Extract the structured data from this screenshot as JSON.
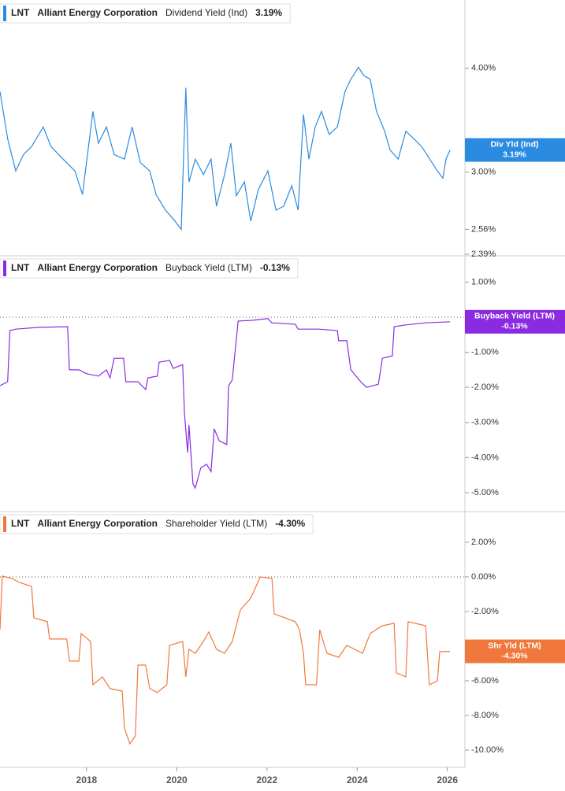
{
  "chart_data": [
    {
      "type": "line",
      "ticker": "LNT",
      "company": "Alliant Energy Corporation",
      "log_scale": true,
      "xlim": [
        2016.08,
        2026.39
      ],
      "ylim": [
        2.39,
        4.78
      ],
      "yticks": [
        {
          "value": 4,
          "label": "4.00%"
        },
        {
          "value": 3,
          "label": "3.00%"
        },
        {
          "value": 2.56,
          "label": "2.56%"
        },
        {
          "value": 2.39,
          "label": "2.39%"
        }
      ],
      "x": [
        2016.08,
        2016.25,
        2016.43,
        2016.6,
        2016.78,
        2017.04,
        2017.21,
        2017.48,
        2017.74,
        2017.91,
        2018.14,
        2018.26,
        2018.44,
        2018.61,
        2018.84,
        2019.01,
        2019.19,
        2019.4,
        2019.54,
        2019.75,
        2019.96,
        2020.1,
        2020.2,
        2020.27,
        2020.41,
        2020.59,
        2020.76,
        2020.88,
        2021.06,
        2021.2,
        2021.32,
        2021.5,
        2021.64,
        2021.81,
        2022.02,
        2022.2,
        2022.37,
        2022.55,
        2022.69,
        2022.81,
        2022.93,
        2023.07,
        2023.21,
        2023.38,
        2023.56,
        2023.73,
        2023.86,
        2024.03,
        2024.15,
        2024.29,
        2024.43,
        2024.61,
        2024.73,
        2024.91,
        2025.08,
        2025.26,
        2025.43,
        2025.61,
        2025.78,
        2025.9,
        2025.97,
        2026.06
      ],
      "series": [
        {
          "name": "Dividend Yield (Ind)",
          "color": "#2b8be0",
          "values": [
            3.75,
            3.29,
            3.01,
            3.15,
            3.22,
            3.4,
            3.22,
            3.11,
            3.01,
            2.82,
            3.55,
            3.25,
            3.4,
            3.15,
            3.11,
            3.4,
            3.08,
            3.01,
            2.82,
            2.7,
            2.62,
            2.56,
            3.79,
            2.92,
            3.11,
            2.98,
            3.11,
            2.73,
            2.98,
            3.25,
            2.81,
            2.92,
            2.62,
            2.86,
            3.01,
            2.7,
            2.73,
            2.89,
            2.7,
            3.52,
            3.11,
            3.4,
            3.55,
            3.33,
            3.4,
            3.75,
            3.88,
            4.01,
            3.92,
            3.88,
            3.55,
            3.36,
            3.19,
            3.11,
            3.36,
            3.29,
            3.22,
            3.11,
            3.01,
            2.95,
            3.11,
            3.19
          ]
        }
      ],
      "badge": {
        "label": "Div Yld (Ind)",
        "value": 3.19,
        "value_label": "3.19%"
      }
    },
    {
      "type": "line",
      "ticker": "LNT",
      "company": "Alliant Energy Corporation",
      "xlim": [
        2016.08,
        2026.39
      ],
      "ylim": [
        -5.54,
        1.75
      ],
      "reference_line": 0,
      "yticks": [
        {
          "value": 1,
          "label": "1.00%"
        },
        {
          "value": -1,
          "label": "-1.00%"
        },
        {
          "value": -2,
          "label": "-2.00%"
        },
        {
          "value": -3,
          "label": "-3.00%"
        },
        {
          "value": -4,
          "label": "-4.00%"
        },
        {
          "value": -5,
          "label": "-5.00%"
        }
      ],
      "x": [
        2016.08,
        2016.25,
        2016.3,
        2016.43,
        2016.95,
        2017.58,
        2017.62,
        2017.83,
        2018.0,
        2018.26,
        2018.44,
        2018.52,
        2018.61,
        2018.82,
        2018.87,
        2019.14,
        2019.31,
        2019.36,
        2019.57,
        2019.61,
        2019.84,
        2019.92,
        2020.13,
        2020.17,
        2020.24,
        2020.27,
        2020.36,
        2020.41,
        2020.53,
        2020.66,
        2020.76,
        2020.83,
        2020.94,
        2021.11,
        2021.15,
        2021.23,
        2021.36,
        2021.67,
        2022.02,
        2022.11,
        2022.63,
        2022.69,
        2023.16,
        2023.56,
        2023.59,
        2023.77,
        2023.86,
        2024.08,
        2024.21,
        2024.47,
        2024.56,
        2024.78,
        2024.82,
        2025.08,
        2025.52,
        2026.06
      ],
      "series": [
        {
          "name": "Buyback Yield (LTM)",
          "color": "#8a2be2",
          "values": [
            -1.95,
            -1.84,
            -0.38,
            -0.34,
            -0.29,
            -0.27,
            -1.5,
            -1.5,
            -1.61,
            -1.68,
            -1.5,
            -1.73,
            -1.17,
            -1.17,
            -1.84,
            -1.84,
            -2.06,
            -1.73,
            -1.68,
            -1.28,
            -1.23,
            -1.46,
            -1.35,
            -2.74,
            -3.86,
            -3.07,
            -4.75,
            -4.87,
            -4.3,
            -4.19,
            -4.4,
            -3.18,
            -3.52,
            -3.63,
            -1.95,
            -1.79,
            -0.11,
            -0.09,
            -0.04,
            -0.16,
            -0.2,
            -0.34,
            -0.34,
            -0.38,
            -0.67,
            -0.67,
            -1.5,
            -1.84,
            -2.0,
            -1.91,
            -1.17,
            -1.1,
            -0.27,
            -0.22,
            -0.16,
            -0.13
          ]
        }
      ],
      "badge": {
        "label": "Buyback Yield (LTM)",
        "value": -0.13,
        "value_label": "-0.13%"
      }
    },
    {
      "type": "line",
      "ticker": "LNT",
      "company": "Alliant Energy Corporation",
      "xlim": [
        2016.08,
        2026.39
      ],
      "ylim": [
        -11,
        3.77
      ],
      "reference_line": 0,
      "xticks": [
        2018,
        2020,
        2022,
        2024,
        2026
      ],
      "yticks": [
        {
          "value": 2,
          "label": "2.00%"
        },
        {
          "value": 0,
          "label": "0.00%"
        },
        {
          "value": -2,
          "label": "-2.00%"
        },
        {
          "value": -4,
          "label": "-4.00%"
        },
        {
          "value": -6,
          "label": "-6.00%"
        },
        {
          "value": -8,
          "label": "-8.00%"
        },
        {
          "value": -10,
          "label": "-10.00%"
        }
      ],
      "x": [
        2016.08,
        2016.13,
        2016.34,
        2016.51,
        2016.78,
        2016.83,
        2017.13,
        2017.18,
        2017.56,
        2017.62,
        2017.83,
        2017.88,
        2018.09,
        2018.14,
        2018.35,
        2018.52,
        2018.79,
        2018.84,
        2018.96,
        2019.08,
        2019.14,
        2019.31,
        2019.4,
        2019.57,
        2019.78,
        2019.84,
        2020.13,
        2020.2,
        2020.27,
        2020.41,
        2020.59,
        2020.71,
        2020.88,
        2021.06,
        2021.23,
        2021.41,
        2021.64,
        2021.85,
        2022.11,
        2022.16,
        2022.63,
        2022.72,
        2022.81,
        2022.86,
        2023.1,
        2023.17,
        2023.33,
        2023.59,
        2023.77,
        2024.12,
        2024.29,
        2024.56,
        2024.82,
        2024.87,
        2025.08,
        2025.13,
        2025.52,
        2025.6,
        2025.78,
        2025.83,
        2026.06
      ],
      "series": [
        {
          "name": "Shareholder Yield (LTM)",
          "color": "#f0783c",
          "values": [
            -3.05,
            0.05,
            -0.09,
            -0.32,
            -0.55,
            -2.36,
            -2.59,
            -3.59,
            -3.59,
            -4.86,
            -4.86,
            -3.27,
            -3.73,
            -6.23,
            -5.77,
            -6.45,
            -6.59,
            -8.73,
            -9.64,
            -9.18,
            -5.09,
            -5.09,
            -6.45,
            -6.68,
            -6.23,
            -3.95,
            -3.73,
            -5.77,
            -4.18,
            -4.41,
            -3.73,
            -3.18,
            -4.18,
            -4.41,
            -3.73,
            -1.91,
            -1.23,
            0,
            -0.09,
            -2.14,
            -2.59,
            -3.05,
            -4.41,
            -6.23,
            -6.23,
            -3.05,
            -4.41,
            -4.64,
            -3.95,
            -4.41,
            -3.27,
            -2.82,
            -2.68,
            -5.55,
            -5.77,
            -2.59,
            -2.82,
            -6.23,
            -6.0,
            -4.32,
            -4.3
          ]
        }
      ],
      "badge": {
        "label": "Shr Yld (LTM)",
        "value": -4.3,
        "value_label": "-4.30%"
      }
    }
  ]
}
